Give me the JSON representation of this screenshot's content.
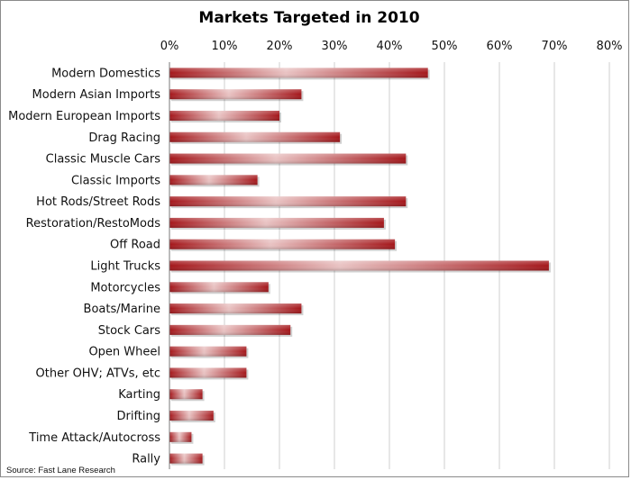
{
  "chart_data": {
    "type": "bar",
    "orientation": "horizontal",
    "title": "Markets Targeted in 2010",
    "categories": [
      "Modern Domestics",
      "Modern Asian Imports",
      "Modern European Imports",
      "Drag Racing",
      "Classic Muscle Cars",
      "Classic Imports",
      "Hot Rods/Street Rods",
      "Restoration/RestoMods",
      "Off Road",
      "Light Trucks",
      "Motorcycles",
      "Boats/Marine",
      "Stock Cars",
      "Open Wheel",
      "Other OHV; ATVs, etc",
      "Karting",
      "Drifting",
      "Time Attack/Autocross",
      "Rally"
    ],
    "values": [
      47,
      24,
      20,
      31,
      43,
      16,
      43,
      39,
      41,
      69,
      18,
      24,
      22,
      14,
      14,
      6,
      8,
      4,
      6
    ],
    "xlim": [
      0,
      80
    ],
    "x_ticks": [
      "0%",
      "10%",
      "20%",
      "30%",
      "40%",
      "50%",
      "60%",
      "70%",
      "80%"
    ],
    "x_tick_values": [
      0,
      10,
      20,
      30,
      40,
      50,
      60,
      70,
      80
    ],
    "x_axis_position": "top",
    "grid": true,
    "source": "Source: Fast Lane Research",
    "colors": {
      "bar_dark": "#a4161a",
      "bar_light": "#e9c3c3",
      "grid": "#cfcfcf",
      "axis": "#7a7a7a"
    }
  }
}
